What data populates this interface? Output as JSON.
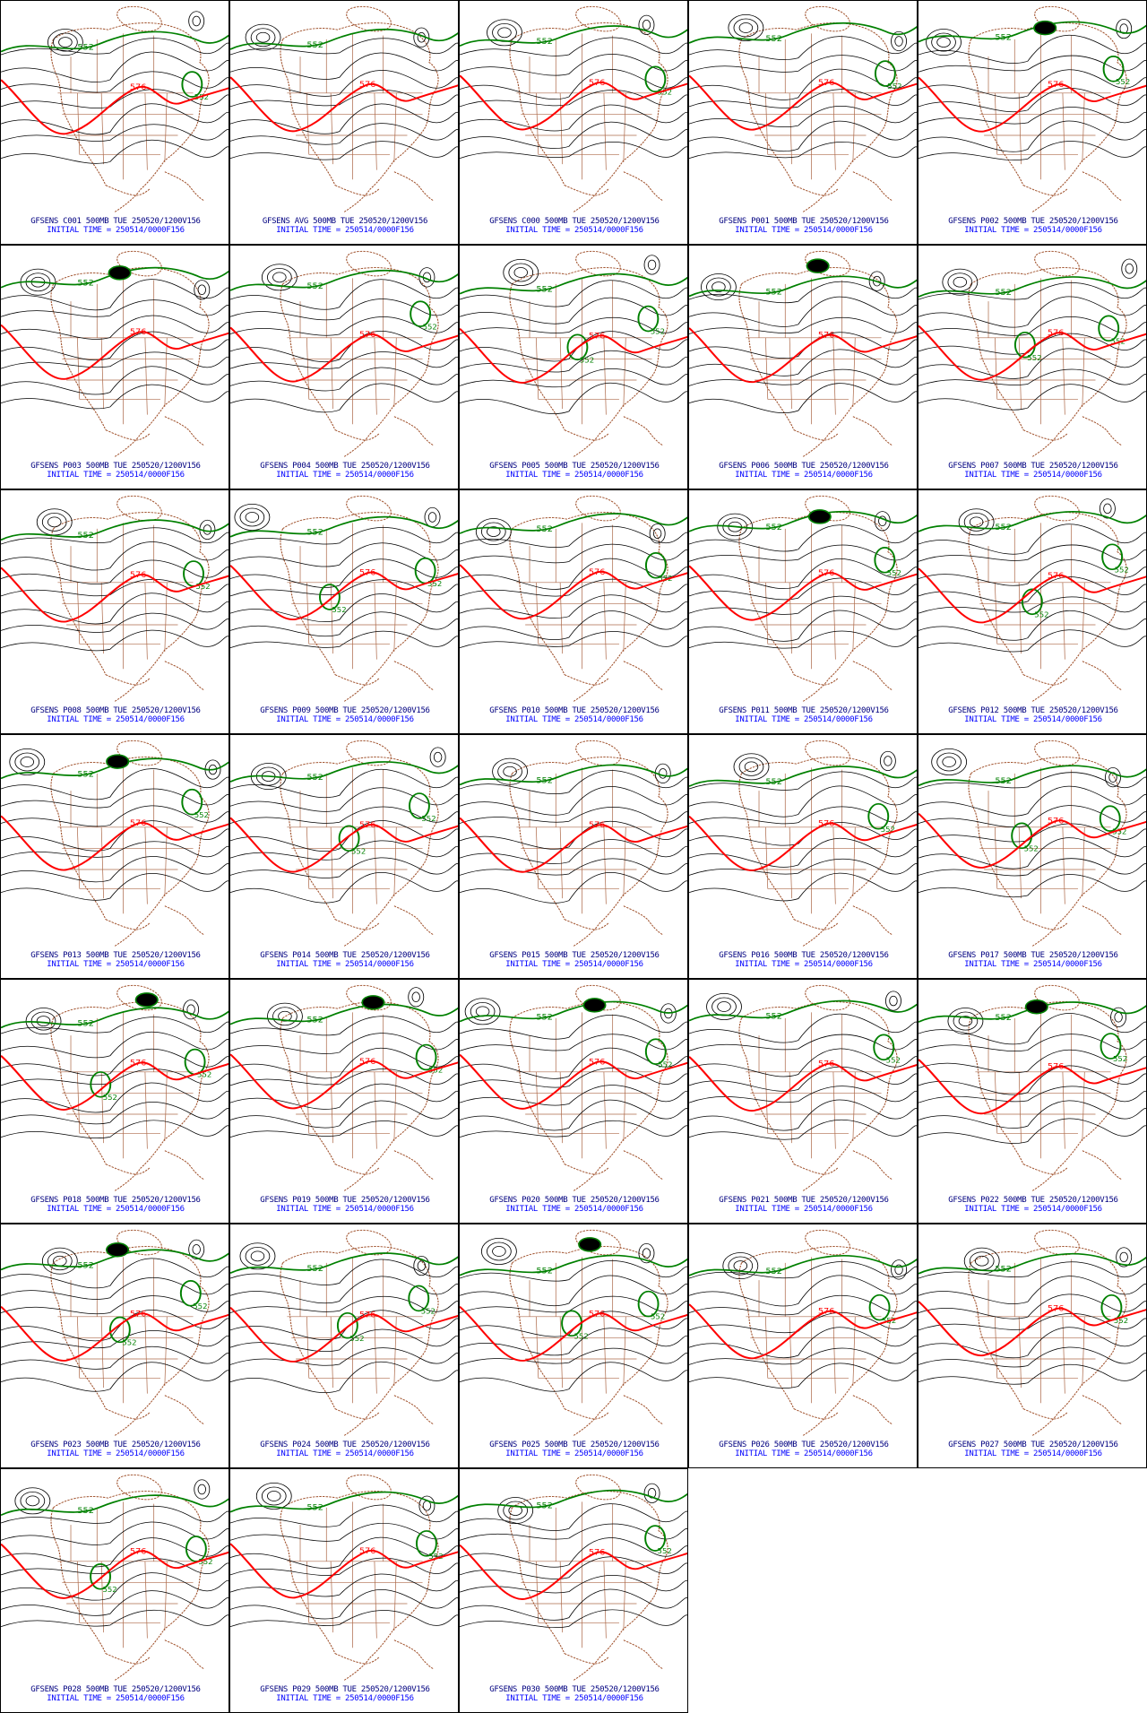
{
  "colors": {
    "height_contour": "#000000",
    "contour_552": "#008000",
    "contour_576": "#ff0000",
    "low_center": "#1e90ff",
    "coastline": "#a0522d",
    "caption_title": "#000080",
    "caption_time": "#0000ff"
  },
  "icons": [
    "map-panel"
  ],
  "contour_labels": {
    "green": "552",
    "red": "576"
  },
  "initial_time_line": "INITIAL TIME = 250514/0000F156",
  "panels": [
    {
      "title": "GFSENS C001 500MB TUE 250520/1200V156",
      "low": false,
      "extra_green": 1
    },
    {
      "title": "GFSENS AVG 500MB TUE 250520/1200V156",
      "low": false,
      "extra_green": 0
    },
    {
      "title": "GFSENS C000 500MB TUE 250520/1200V156",
      "low": false,
      "extra_green": 1
    },
    {
      "title": "GFSENS P001 500MB TUE 250520/1200V156",
      "low": false,
      "extra_green": 1
    },
    {
      "title": "GFSENS P002 500MB TUE 250520/1200V156",
      "low": true,
      "extra_green": 1
    },
    {
      "title": "GFSENS P003 500MB TUE 250520/1200V156",
      "low": true,
      "extra_green": 0
    },
    {
      "title": "GFSENS P004 500MB TUE 250520/1200V156",
      "low": false,
      "extra_green": 1
    },
    {
      "title": "GFSENS P005 500MB TUE 250520/1200V156",
      "low": false,
      "extra_green": 2
    },
    {
      "title": "GFSENS P006 500MB TUE 250520/1200V156",
      "low": true,
      "extra_green": 0
    },
    {
      "title": "GFSENS P007 500MB TUE 250520/1200V156",
      "low": false,
      "extra_green": 2
    },
    {
      "title": "GFSENS P008 500MB TUE 250520/1200V156",
      "low": false,
      "extra_green": 1
    },
    {
      "title": "GFSENS P009 500MB TUE 250520/1200V156",
      "low": false,
      "extra_green": 2
    },
    {
      "title": "GFSENS P010 500MB TUE 250520/1200V156",
      "low": false,
      "extra_green": 1
    },
    {
      "title": "GFSENS P011 500MB TUE 250520/1200V156",
      "low": true,
      "extra_green": 1
    },
    {
      "title": "GFSENS P012 500MB TUE 250520/1200V156",
      "low": false,
      "extra_green": 2
    },
    {
      "title": "GFSENS P013 500MB TUE 250520/1200V156",
      "low": true,
      "extra_green": 1
    },
    {
      "title": "GFSENS P014 500MB TUE 250520/1200V156",
      "low": false,
      "extra_green": 2
    },
    {
      "title": "GFSENS P015 500MB TUE 250520/1200V156",
      "low": false,
      "extra_green": 0
    },
    {
      "title": "GFSENS P016 500MB TUE 250520/1200V156",
      "low": false,
      "extra_green": 1
    },
    {
      "title": "GFSENS P017 500MB TUE 250520/1200V156",
      "low": false,
      "extra_green": 2
    },
    {
      "title": "GFSENS P018 500MB TUE 250520/1200V156",
      "low": true,
      "extra_green": 2
    },
    {
      "title": "GFSENS P019 500MB TUE 250520/1200V156",
      "low": true,
      "extra_green": 1
    },
    {
      "title": "GFSENS P020 500MB TUE 250520/1200V156",
      "low": true,
      "extra_green": 1
    },
    {
      "title": "GFSENS P021 500MB TUE 250520/1200V156",
      "low": false,
      "extra_green": 1
    },
    {
      "title": "GFSENS P022 500MB TUE 250520/1200V156",
      "low": true,
      "extra_green": 1
    },
    {
      "title": "GFSENS P023 500MB TUE 250520/1200V156",
      "low": true,
      "extra_green": 2
    },
    {
      "title": "GFSENS P024 500MB TUE 250520/1200V156",
      "low": false,
      "extra_green": 2
    },
    {
      "title": "GFSENS P025 500MB TUE 250520/1200V156",
      "low": true,
      "extra_green": 2
    },
    {
      "title": "GFSENS P026 500MB TUE 250520/1200V156",
      "low": false,
      "extra_green": 1
    },
    {
      "title": "GFSENS P027 500MB TUE 250520/1200V156",
      "low": false,
      "extra_green": 1
    },
    {
      "title": "GFSENS P028 500MB TUE 250520/1200V156",
      "low": false,
      "extra_green": 2
    },
    {
      "title": "GFSENS P029 500MB TUE 250520/1200V156",
      "low": false,
      "extra_green": 1
    },
    {
      "title": "GFSENS P030 500MB TUE 250520/1200V156",
      "low": false,
      "extra_green": 1
    }
  ]
}
